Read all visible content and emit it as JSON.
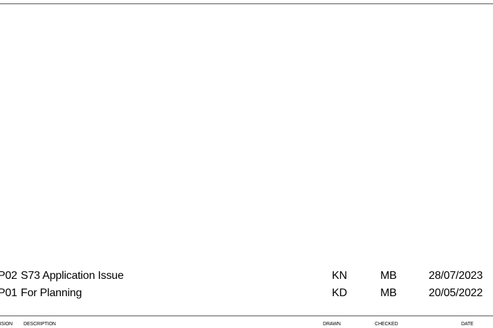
{
  "revisions": [
    {
      "revision": "P02",
      "description": "S73 Application Issue",
      "drawn": "KN",
      "checked": "MB",
      "date": "28/07/2023"
    },
    {
      "revision": "P01",
      "description": "For Planning",
      "drawn": "KD",
      "checked": "MB",
      "date": "20/05/2022"
    }
  ],
  "headers": {
    "revision": "VISION",
    "description": "DESCRIPTION",
    "drawn": "DRAWN",
    "checked": "CHECKED",
    "date": "DATE"
  }
}
